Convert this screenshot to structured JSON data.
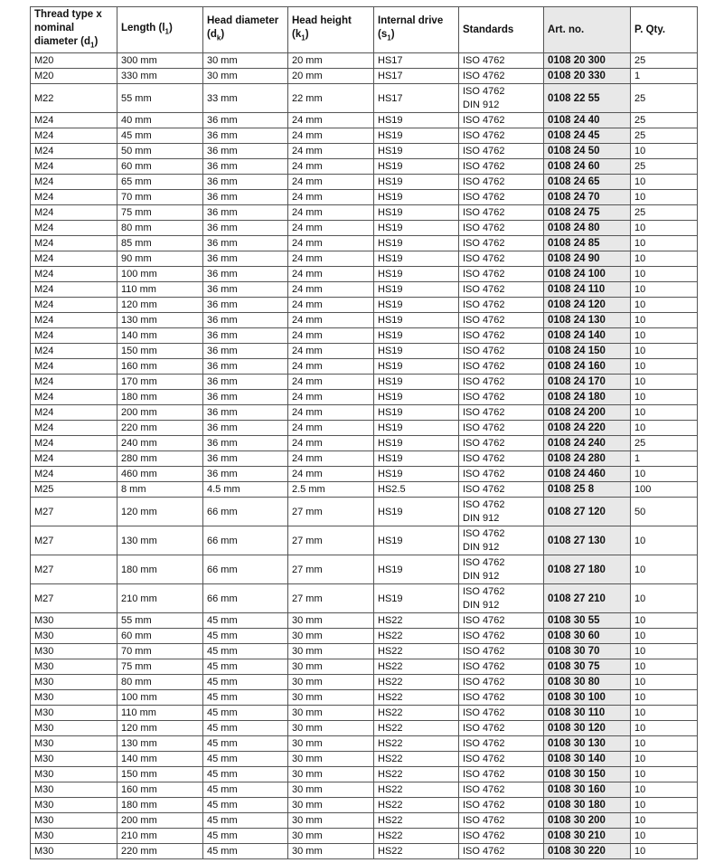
{
  "headers": [
    {
      "label": "Thread type x nominal diameter (d",
      "sub": "1",
      "end": ")"
    },
    {
      "label": "Length (l",
      "sub": "1",
      "end": ")"
    },
    {
      "label": "Head diameter (d",
      "sub": "k",
      "end": ")"
    },
    {
      "label": "Head height (k",
      "sub": "1",
      "end": ")"
    },
    {
      "label": "Internal drive (s",
      "sub": "1",
      "end": ")"
    },
    {
      "label": "Standards",
      "sub": "",
      "end": ""
    },
    {
      "label": "Art. no.",
      "sub": "",
      "end": ""
    },
    {
      "label": "P. Qty.",
      "sub": "",
      "end": ""
    }
  ],
  "art_column_bg": "#e8e8e8",
  "rows": [
    [
      "M20",
      "300 mm",
      "30 mm",
      "20 mm",
      "HS17",
      [
        "ISO 4762"
      ],
      "0108 20  300",
      "25"
    ],
    [
      "M20",
      "330 mm",
      "30 mm",
      "20 mm",
      "HS17",
      [
        "ISO 4762"
      ],
      "0108 20  330",
      "1"
    ],
    [
      "M22",
      "55 mm",
      "33 mm",
      "22 mm",
      "HS17",
      [
        "ISO 4762",
        "DIN 912"
      ],
      "0108 22  55",
      "25"
    ],
    [
      "M24",
      "40 mm",
      "36 mm",
      "24 mm",
      "HS19",
      [
        "ISO 4762"
      ],
      "0108 24  40",
      "25"
    ],
    [
      "M24",
      "45 mm",
      "36 mm",
      "24 mm",
      "HS19",
      [
        "ISO 4762"
      ],
      "0108 24  45",
      "25"
    ],
    [
      "M24",
      "50 mm",
      "36 mm",
      "24 mm",
      "HS19",
      [
        "ISO 4762"
      ],
      "0108 24  50",
      "10"
    ],
    [
      "M24",
      "60 mm",
      "36 mm",
      "24 mm",
      "HS19",
      [
        "ISO 4762"
      ],
      "0108 24  60",
      "25"
    ],
    [
      "M24",
      "65 mm",
      "36 mm",
      "24 mm",
      "HS19",
      [
        "ISO 4762"
      ],
      "0108 24  65",
      "10"
    ],
    [
      "M24",
      "70 mm",
      "36 mm",
      "24 mm",
      "HS19",
      [
        "ISO 4762"
      ],
      "0108 24  70",
      "10"
    ],
    [
      "M24",
      "75 mm",
      "36 mm",
      "24 mm",
      "HS19",
      [
        "ISO 4762"
      ],
      "0108 24  75",
      "25"
    ],
    [
      "M24",
      "80 mm",
      "36 mm",
      "24 mm",
      "HS19",
      [
        "ISO 4762"
      ],
      "0108 24  80",
      "10"
    ],
    [
      "M24",
      "85 mm",
      "36 mm",
      "24 mm",
      "HS19",
      [
        "ISO 4762"
      ],
      "0108 24  85",
      "10"
    ],
    [
      "M24",
      "90 mm",
      "36 mm",
      "24 mm",
      "HS19",
      [
        "ISO 4762"
      ],
      "0108 24  90",
      "10"
    ],
    [
      "M24",
      "100 mm",
      "36 mm",
      "24 mm",
      "HS19",
      [
        "ISO 4762"
      ],
      "0108 24  100",
      "10"
    ],
    [
      "M24",
      "110 mm",
      "36 mm",
      "24 mm",
      "HS19",
      [
        "ISO 4762"
      ],
      "0108 24  110",
      "10"
    ],
    [
      "M24",
      "120 mm",
      "36 mm",
      "24 mm",
      "HS19",
      [
        "ISO 4762"
      ],
      "0108 24  120",
      "10"
    ],
    [
      "M24",
      "130 mm",
      "36 mm",
      "24 mm",
      "HS19",
      [
        "ISO 4762"
      ],
      "0108 24  130",
      "10"
    ],
    [
      "M24",
      "140 mm",
      "36 mm",
      "24 mm",
      "HS19",
      [
        "ISO 4762"
      ],
      "0108 24  140",
      "10"
    ],
    [
      "M24",
      "150 mm",
      "36 mm",
      "24 mm",
      "HS19",
      [
        "ISO 4762"
      ],
      "0108 24  150",
      "10"
    ],
    [
      "M24",
      "160 mm",
      "36 mm",
      "24 mm",
      "HS19",
      [
        "ISO 4762"
      ],
      "0108 24  160",
      "10"
    ],
    [
      "M24",
      "170 mm",
      "36 mm",
      "24 mm",
      "HS19",
      [
        "ISO 4762"
      ],
      "0108 24  170",
      "10"
    ],
    [
      "M24",
      "180 mm",
      "36 mm",
      "24 mm",
      "HS19",
      [
        "ISO 4762"
      ],
      "0108 24  180",
      "10"
    ],
    [
      "M24",
      "200 mm",
      "36 mm",
      "24 mm",
      "HS19",
      [
        "ISO 4762"
      ],
      "0108 24  200",
      "10"
    ],
    [
      "M24",
      "220 mm",
      "36 mm",
      "24 mm",
      "HS19",
      [
        "ISO 4762"
      ],
      "0108 24  220",
      "10"
    ],
    [
      "M24",
      "240 mm",
      "36 mm",
      "24 mm",
      "HS19",
      [
        "ISO 4762"
      ],
      "0108 24  240",
      "25"
    ],
    [
      "M24",
      "280 mm",
      "36 mm",
      "24 mm",
      "HS19",
      [
        "ISO 4762"
      ],
      "0108 24  280",
      "1"
    ],
    [
      "M24",
      "460 mm",
      "36 mm",
      "24 mm",
      "HS19",
      [
        "ISO 4762"
      ],
      "0108 24  460",
      "10"
    ],
    [
      "M25",
      "8 mm",
      "4.5 mm",
      "2.5 mm",
      "HS2.5",
      [
        "ISO 4762"
      ],
      "0108 25  8",
      "100"
    ],
    [
      "M27",
      "120 mm",
      "66 mm",
      "27 mm",
      "HS19",
      [
        "ISO 4762",
        "DIN 912"
      ],
      "0108 27  120",
      "50"
    ],
    [
      "M27",
      "130 mm",
      "66 mm",
      "27 mm",
      "HS19",
      [
        "ISO 4762",
        "DIN 912"
      ],
      "0108 27  130",
      "10"
    ],
    [
      "M27",
      "180 mm",
      "66 mm",
      "27 mm",
      "HS19",
      [
        "ISO 4762",
        "DIN 912"
      ],
      "0108 27  180",
      "10"
    ],
    [
      "M27",
      "210 mm",
      "66 mm",
      "27 mm",
      "HS19",
      [
        "ISO 4762",
        "DIN 912"
      ],
      "0108 27  210",
      "10"
    ],
    [
      "M30",
      "55 mm",
      "45 mm",
      "30 mm",
      "HS22",
      [
        "ISO 4762"
      ],
      "0108 30  55",
      "10"
    ],
    [
      "M30",
      "60 mm",
      "45 mm",
      "30 mm",
      "HS22",
      [
        "ISO 4762"
      ],
      "0108 30  60",
      "10"
    ],
    [
      "M30",
      "70 mm",
      "45 mm",
      "30 mm",
      "HS22",
      [
        "ISO 4762"
      ],
      "0108 30  70",
      "10"
    ],
    [
      "M30",
      "75 mm",
      "45 mm",
      "30 mm",
      "HS22",
      [
        "ISO 4762"
      ],
      "0108 30  75",
      "10"
    ],
    [
      "M30",
      "80 mm",
      "45 mm",
      "30 mm",
      "HS22",
      [
        "ISO 4762"
      ],
      "0108 30  80",
      "10"
    ],
    [
      "M30",
      "100 mm",
      "45 mm",
      "30 mm",
      "HS22",
      [
        "ISO 4762"
      ],
      "0108 30  100",
      "10"
    ],
    [
      "M30",
      "110 mm",
      "45 mm",
      "30 mm",
      "HS22",
      [
        "ISO 4762"
      ],
      "0108 30  110",
      "10"
    ],
    [
      "M30",
      "120 mm",
      "45 mm",
      "30 mm",
      "HS22",
      [
        "ISO 4762"
      ],
      "0108 30  120",
      "10"
    ],
    [
      "M30",
      "130 mm",
      "45 mm",
      "30 mm",
      "HS22",
      [
        "ISO 4762"
      ],
      "0108 30  130",
      "10"
    ],
    [
      "M30",
      "140 mm",
      "45 mm",
      "30 mm",
      "HS22",
      [
        "ISO 4762"
      ],
      "0108 30  140",
      "10"
    ],
    [
      "M30",
      "150 mm",
      "45 mm",
      "30 mm",
      "HS22",
      [
        "ISO 4762"
      ],
      "0108 30  150",
      "10"
    ],
    [
      "M30",
      "160 mm",
      "45 mm",
      "30 mm",
      "HS22",
      [
        "ISO 4762"
      ],
      "0108 30  160",
      "10"
    ],
    [
      "M30",
      "180 mm",
      "45 mm",
      "30 mm",
      "HS22",
      [
        "ISO 4762"
      ],
      "0108 30  180",
      "10"
    ],
    [
      "M30",
      "200 mm",
      "45 mm",
      "30 mm",
      "HS22",
      [
        "ISO 4762"
      ],
      "0108 30  200",
      "10"
    ],
    [
      "M30",
      "210 mm",
      "45 mm",
      "30 mm",
      "HS22",
      [
        "ISO 4762"
      ],
      "0108 30  210",
      "10"
    ],
    [
      "M30",
      "220 mm",
      "45 mm",
      "30 mm",
      "HS22",
      [
        "ISO 4762"
      ],
      "0108 30  220",
      "10"
    ]
  ]
}
